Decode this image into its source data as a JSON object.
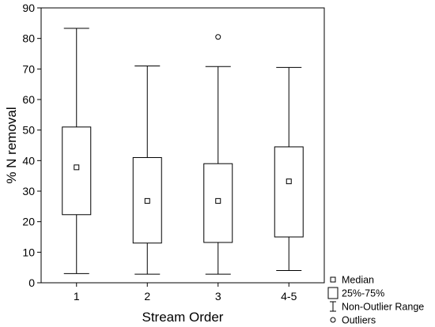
{
  "chart_data": {
    "type": "box",
    "xlabel": "Stream Order",
    "ylabel": "% N removal",
    "ylim": [
      0,
      90
    ],
    "yticks": [
      0,
      10,
      20,
      30,
      40,
      50,
      60,
      70,
      80,
      90
    ],
    "grid": false,
    "legend_position": "bottom-right outside",
    "categories": [
      "1",
      "2",
      "3",
      "4-5"
    ],
    "boxes": [
      {
        "category": "1",
        "min": 3,
        "q1": 22.3,
        "median": 37.8,
        "q3": 51,
        "max": 83.3,
        "outliers": []
      },
      {
        "category": "2",
        "min": 2.8,
        "q1": 13,
        "median": 26.8,
        "q3": 41,
        "max": 71,
        "outliers": []
      },
      {
        "category": "3",
        "min": 2.8,
        "q1": 13.2,
        "median": 26.8,
        "q3": 39,
        "max": 70.8,
        "outliers": [
          80.5
        ]
      },
      {
        "category": "4-5",
        "min": 4,
        "q1": 15,
        "median": 33.2,
        "q3": 44.5,
        "max": 70.5,
        "outliers": []
      }
    ],
    "legend": [
      {
        "symbol": "median",
        "label": "Median"
      },
      {
        "symbol": "box",
        "label": "25%-75%"
      },
      {
        "symbol": "whisker",
        "label": "Non-Outlier Range"
      },
      {
        "symbol": "outlier",
        "label": "Outliers"
      }
    ]
  }
}
